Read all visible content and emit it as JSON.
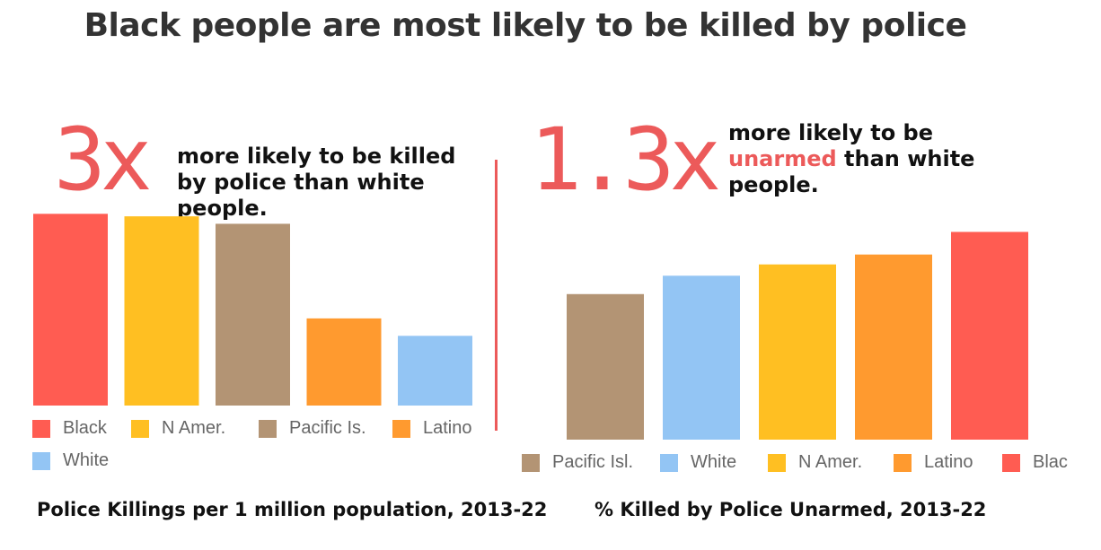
{
  "title": "Black people are most likely to be killed by police",
  "left": {
    "stat_value": "3x",
    "stat_text": "more likely to be killed by police than white people.",
    "caption": "Police Killings per 1 million population, 2013-22"
  },
  "right": {
    "stat_value": "1.3x",
    "stat_text_before": "more likely to be",
    "stat_text_highlight": "unarmed",
    "stat_text_after": "than white people.",
    "caption": "% Killed by Police Unarmed, 2013-22"
  },
  "colors": {
    "accent": "#ec5a5a",
    "Black": "#ff5c52",
    "N Amer.": "#ffbf22",
    "Pacific": "#b39474",
    "Latino": "#ff9a2f",
    "White": "#93c5f4"
  },
  "chart_data": [
    {
      "type": "bar",
      "title": "Police Killings per 1 million population, 2013-22",
      "categories": [
        "Black",
        "N Amer.",
        "Pacific Is.",
        "Latino",
        "White"
      ],
      "values": [
        7.7,
        7.6,
        7.3,
        3.5,
        2.8
      ],
      "color_keys": [
        "Black",
        "N Amer.",
        "Pacific",
        "Latino",
        "White"
      ],
      "ylim": [
        0,
        8
      ],
      "xlabel": "",
      "ylabel": "",
      "grid": false,
      "legend": "bottom"
    },
    {
      "type": "bar",
      "title": "% Killed by Police Unarmed, 2013-22",
      "categories": [
        "Pacific Isl.",
        "White",
        "N Amer.",
        "Latino",
        "Black"
      ],
      "values": [
        10.3,
        11.6,
        12.4,
        13.1,
        14.7
      ],
      "color_keys": [
        "Pacific",
        "White",
        "N Amer.",
        "Latino",
        "Black"
      ],
      "ylim": [
        0,
        16
      ],
      "xlabel": "",
      "ylabel": "",
      "grid": false,
      "legend": "bottom"
    }
  ]
}
